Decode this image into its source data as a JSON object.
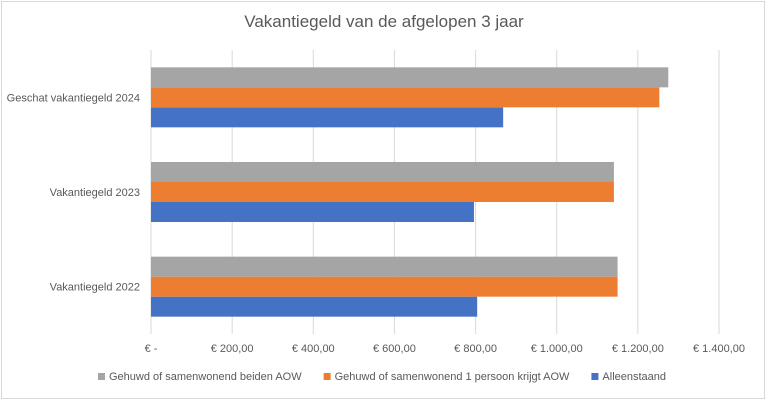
{
  "chart_data": {
    "type": "bar",
    "orientation": "horizontal",
    "title": "Vakantiegeld van de afgelopen 3 jaar",
    "categories": [
      "Vakantiegeld 2022",
      "Vakantiegeld 2023",
      "Geschat vakantiegeld 2024"
    ],
    "series": [
      {
        "name": "Alleenstaand",
        "color": "#4472c4",
        "values": [
          804,
          796,
          868
        ]
      },
      {
        "name": "Gehuwd of samenwonend 1 persoon krijgt AOW",
        "color": "#ed7d31",
        "values": [
          1150,
          1141,
          1253
        ]
      },
      {
        "name": "Gehuwd of samenwonend beiden AOW",
        "color": "#a5a5a5",
        "values": [
          1150,
          1141,
          1275
        ]
      }
    ],
    "xlim": [
      0,
      1400
    ],
    "xticks": [
      0,
      200,
      400,
      600,
      800,
      1000,
      1200,
      1400
    ],
    "xtick_labels": [
      "€ -",
      "€ 200,00",
      "€ 400,00",
      "€ 600,00",
      "€ 800,00",
      "€ 1.000,00",
      "€ 1.200,00",
      "€ 1.400,00"
    ],
    "legend_position": "bottom",
    "legend_order": [
      "Gehuwd of samenwonend beiden AOW",
      "Gehuwd of samenwonend 1 persoon krijgt AOW",
      "Alleenstaand"
    ],
    "grid": true,
    "gridline_color": "#d9d9d9"
  }
}
